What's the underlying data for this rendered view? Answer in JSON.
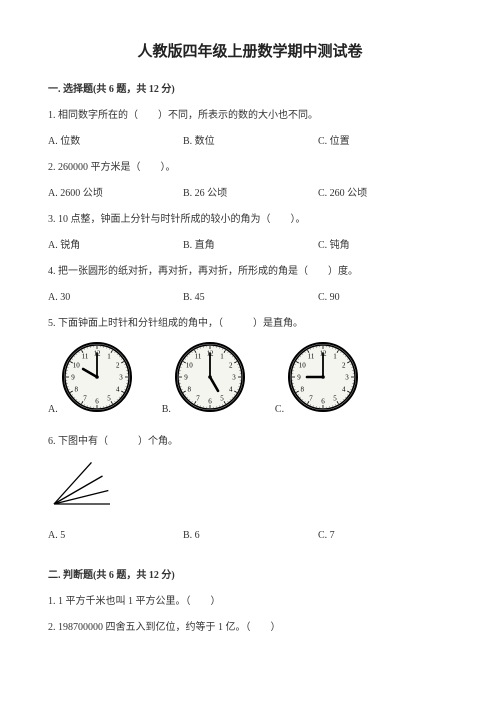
{
  "title": "人教版四年级上册数学期中测试卷",
  "section1": {
    "header": "一. 选择题(共 6 题，共 12 分)",
    "q1": {
      "text": "1. 相同数字所在的（　　）不同，所表示的数的大小也不同。",
      "a": "A. 位数",
      "b": "B. 数位",
      "c": "C. 位置"
    },
    "q2": {
      "text": "2. 260000 平方米是（　　）。",
      "a": "A. 2600 公顷",
      "b": "B. 26 公顷",
      "c": "C. 260 公顷"
    },
    "q3": {
      "text": "3. 10 点整，钟面上分针与时针所成的较小的角为（　　）。",
      "a": "A. 锐角",
      "b": "B. 直角",
      "c": "C. 钝角"
    },
    "q4": {
      "text": "4. 把一张圆形的纸对折，再对折，再对折，所形成的角是（　　）度。",
      "a": "A. 30",
      "b": "B. 45",
      "c": "C. 90"
    },
    "q5": {
      "text": "5. 下面钟面上时针和分针组成的角中，（　　　）是直角。",
      "labels": {
        "a": "A.",
        "b": "B.",
        "c": "C."
      },
      "clocks": [
        {
          "hour_angle": 300,
          "minute_angle": 0
        },
        {
          "hour_angle": 150,
          "minute_angle": 0
        },
        {
          "hour_angle": 270,
          "minute_angle": 0
        }
      ],
      "clock_style": {
        "size": 70,
        "face_color": "#f5f5f0",
        "stroke": "#000000",
        "numeral_fontsize": 7
      }
    },
    "q6": {
      "text": "6. 下图中有（　　　）个角。",
      "a": "A. 5",
      "b": "B. 6",
      "c": "C. 7",
      "figure": {
        "rays": 4,
        "angles_deg": [
          0,
          14,
          30,
          48
        ],
        "length": 56,
        "stroke": "#000000"
      }
    }
  },
  "section2": {
    "header": "二. 判断题(共 6 题，共 12 分)",
    "q1": "1. 1 平方千米也叫 1 平方公里。（　　）",
    "q2": "2. 198700000 四舍五入到亿位，约等于 1 亿。（　　）"
  }
}
